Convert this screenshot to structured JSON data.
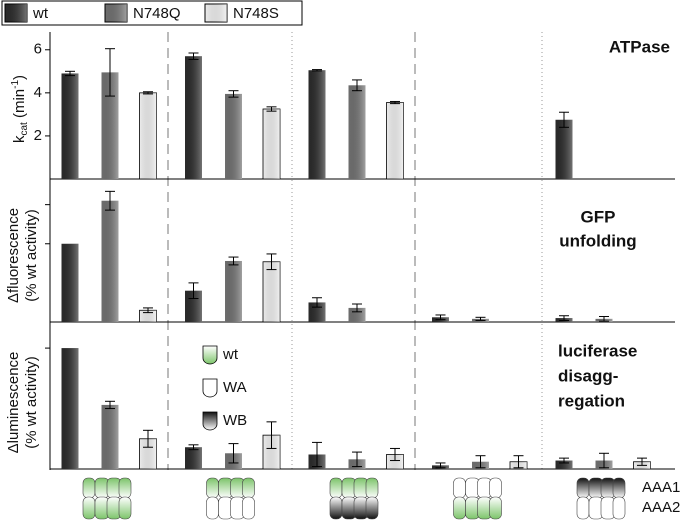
{
  "chart_data": [
    {
      "type": "bar",
      "title": [
        "ATPase"
      ],
      "y_label": {
        "base": "k",
        "sub": "cat",
        "unit": " (min",
        "sup": "-1",
        "close": ")"
      },
      "categories": [
        null,
        null,
        null,
        null,
        null
      ],
      "series": [
        {
          "name": "wt",
          "color": "#2a2a2a",
          "values": [
            4.9,
            5.7,
            5.05,
            null,
            2.75
          ],
          "errors": [
            0.1,
            0.15,
            0.03,
            null,
            0.35
          ]
        },
        {
          "name": "N748Q",
          "color": "#6e6e6e",
          "values": [
            4.95,
            3.95,
            4.35,
            null,
            null
          ],
          "errors": [
            1.1,
            0.15,
            0.25,
            null,
            null
          ]
        },
        {
          "name": "N748S",
          "color": "#ececec",
          "values": [
            4.0,
            3.25,
            3.55,
            null,
            null
          ],
          "errors": [
            0.05,
            0.1,
            0.05,
            null,
            null
          ]
        }
      ],
      "ylim": [
        0,
        6.5
      ],
      "yticks": [
        2,
        4,
        6
      ],
      "tick_labels": true
    },
    {
      "type": "bar",
      "title": [
        "GFP",
        "unfolding"
      ],
      "y_label": [
        "Δfluorescence",
        "(% wt activity)"
      ],
      "categories": [
        null,
        null,
        null,
        null,
        null
      ],
      "series": [
        {
          "name": "wt",
          "color": "#2a2a2a",
          "values": [
            100,
            40,
            25,
            6,
            5
          ],
          "errors": [
            0,
            10,
            6,
            3,
            3
          ]
        },
        {
          "name": "N748Q",
          "color": "#6e6e6e",
          "values": [
            155,
            78,
            18,
            4,
            4
          ],
          "errors": [
            12,
            5,
            5,
            2,
            3
          ]
        },
        {
          "name": "N748S",
          "color": "#ececec",
          "values": [
            15,
            77,
            null,
            null,
            null
          ],
          "errors": [
            3,
            10,
            null,
            null,
            null
          ]
        }
      ],
      "ylim": [
        0,
        170
      ],
      "yticks": [
        100,
        150
      ],
      "tick_labels": false
    },
    {
      "type": "bar",
      "title": [
        "luciferase",
        "disagg-",
        "regation"
      ],
      "y_label": [
        "Δluminescence",
        "(% wt activity)"
      ],
      "annotations": [
        "wt",
        "WA",
        "WB"
      ],
      "bottom_labels": [
        "AAA1",
        "AAA2"
      ],
      "categories": [
        null,
        null,
        null,
        null,
        null
      ],
      "series": [
        {
          "name": "wt",
          "color": "#2a2a2a",
          "values": [
            100,
            18,
            12,
            3,
            7
          ],
          "errors": [
            0,
            2,
            10,
            2,
            2
          ]
        },
        {
          "name": "N748Q",
          "color": "#6e6e6e",
          "values": [
            53,
            13,
            8,
            6,
            7
          ],
          "errors": [
            3,
            8,
            6,
            5,
            6
          ]
        },
        {
          "name": "N748S",
          "color": "#ececec",
          "values": [
            25,
            28,
            12,
            6,
            6
          ],
          "errors": [
            7,
            11,
            5,
            5,
            3
          ]
        }
      ],
      "ylim": [
        0,
        110
      ],
      "yticks": [
        100
      ],
      "tick_labels": false
    }
  ]
}
